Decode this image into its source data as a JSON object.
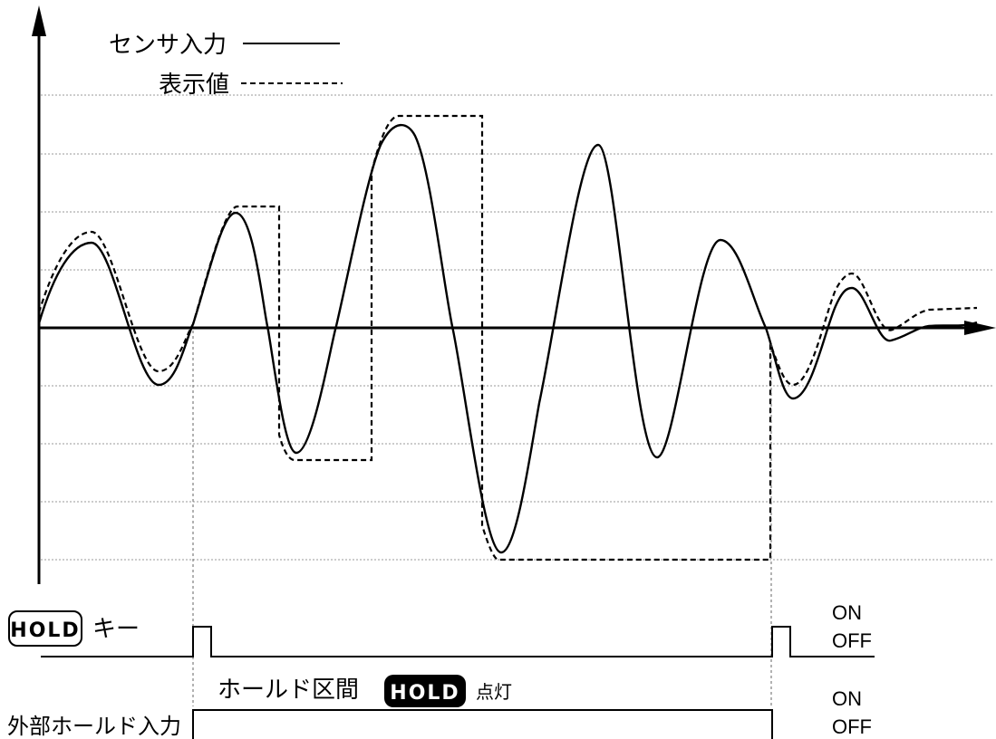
{
  "legend": {
    "sensor_input": "センサ入力",
    "display_value": "表示値"
  },
  "hold_key": {
    "badge": "HOLD",
    "label": "キー",
    "on": "ON",
    "off": "OFF"
  },
  "hold_interval": {
    "label": "ホールド区間",
    "badge": "HOLD",
    "lit": "点灯"
  },
  "external_hold": {
    "label": "外部ホールド入力",
    "on": "ON",
    "off": "OFF"
  },
  "colors": {
    "line": "#000000",
    "grid": "#9a9a9a",
    "badge_fill": "#000000",
    "badge_text": "#ffffff"
  }
}
